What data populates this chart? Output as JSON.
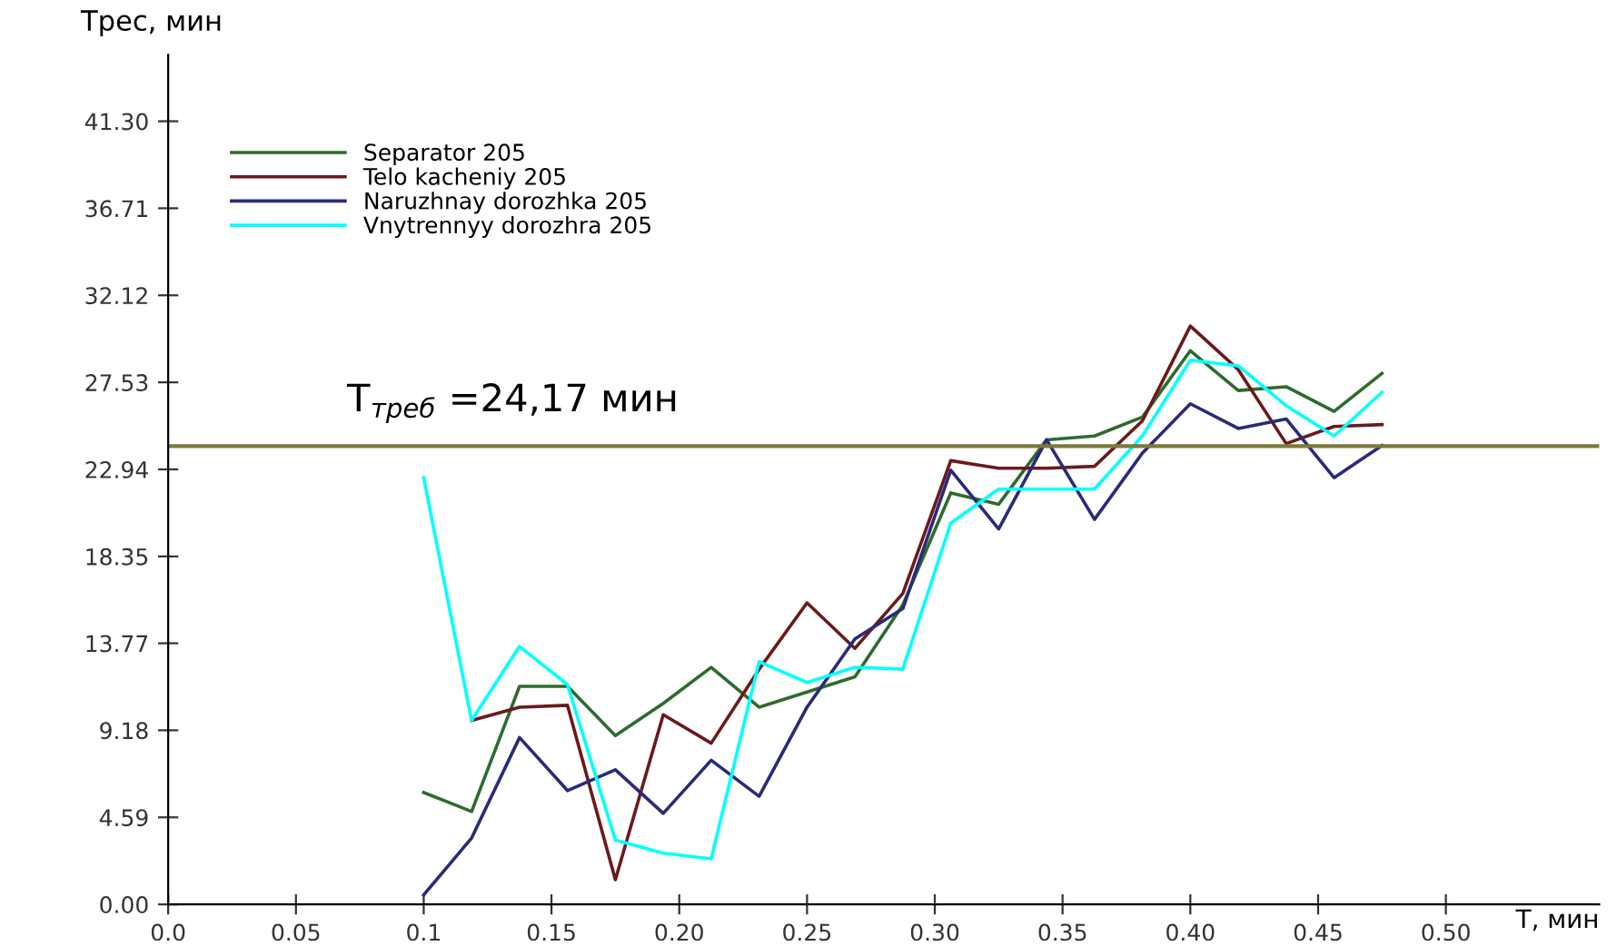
{
  "chart_data": {
    "type": "line",
    "xlabel": "T, мин",
    "ylabel": "Трес, мин",
    "x": [
      0.1,
      0.11875,
      0.1375,
      0.15625,
      0.175,
      0.19375,
      0.2125,
      0.23125,
      0.25,
      0.26875,
      0.2875,
      0.30625,
      0.325,
      0.34375,
      0.3625,
      0.38125,
      0.4,
      0.41875,
      0.4375,
      0.45625,
      0.475
    ],
    "series": [
      {
        "name": "Separator 205",
        "color": "#2e6b2e",
        "values": [
          5.9,
          4.9,
          11.5,
          11.5,
          8.9,
          10.6,
          12.5,
          10.4,
          11.2,
          12.0,
          15.8,
          21.7,
          21.1,
          24.5,
          24.7,
          25.7,
          29.2,
          27.1,
          27.3,
          26.0,
          28.0
        ]
      },
      {
        "name": "Telo kacheniy 205",
        "color": "#6b1a1a",
        "values": [
          null,
          9.7,
          10.4,
          10.5,
          1.3,
          10.0,
          8.5,
          12.4,
          15.9,
          13.5,
          16.4,
          23.4,
          23.0,
          23.0,
          23.1,
          25.5,
          30.5,
          28.2,
          24.3,
          25.2,
          25.3
        ]
      },
      {
        "name": "Naruzhnay dorozhka 205",
        "color": "#2a2a7a",
        "values": [
          0.5,
          3.5,
          8.8,
          6.0,
          7.1,
          4.8,
          7.6,
          5.7,
          10.4,
          14.0,
          15.6,
          22.9,
          19.8,
          24.5,
          20.3,
          23.8,
          26.4,
          25.1,
          25.6,
          22.5,
          24.2
        ]
      },
      {
        "name": "Vnytrennyy dorozhra 205",
        "color": "#00ffff",
        "values": [
          22.5,
          9.7,
          13.6,
          11.6,
          3.4,
          2.7,
          2.4,
          12.8,
          11.7,
          12.5,
          12.4,
          20.1,
          21.9,
          21.9,
          21.9,
          24.7,
          28.7,
          28.4,
          26.3,
          24.7,
          27.0
        ]
      }
    ],
    "ref_lines": [
      {
        "axis": "y",
        "value": 24.17,
        "label": "T$_{треб}$ =24,17 мин",
        "color": "#7a7a3a"
      }
    ],
    "xlim": [
      0,
      0.56
    ],
    "ylim": [
      0,
      44.8
    ],
    "xticks": [
      {
        "value": 0,
        "label": "0.0"
      },
      0.05,
      0.1,
      0.15,
      {
        "value": 0.2,
        "label": "0.20"
      },
      0.25,
      {
        "value": 0.3,
        "label": "0.30"
      },
      0.35,
      {
        "value": 0.4,
        "label": "0.40"
      },
      0.45,
      {
        "value": 0.5,
        "label": "0.50"
      }
    ],
    "yticks": [
      {
        "value": 0,
        "label": "0.00"
      },
      4.59,
      9.18,
      13.77,
      18.35,
      22.94,
      27.53,
      32.12,
      36.71,
      {
        "value": 41.3,
        "label": "41.30"
      }
    ],
    "grid": false,
    "legend": "top left",
    "marker": "none",
    "line_style": "solid"
  }
}
